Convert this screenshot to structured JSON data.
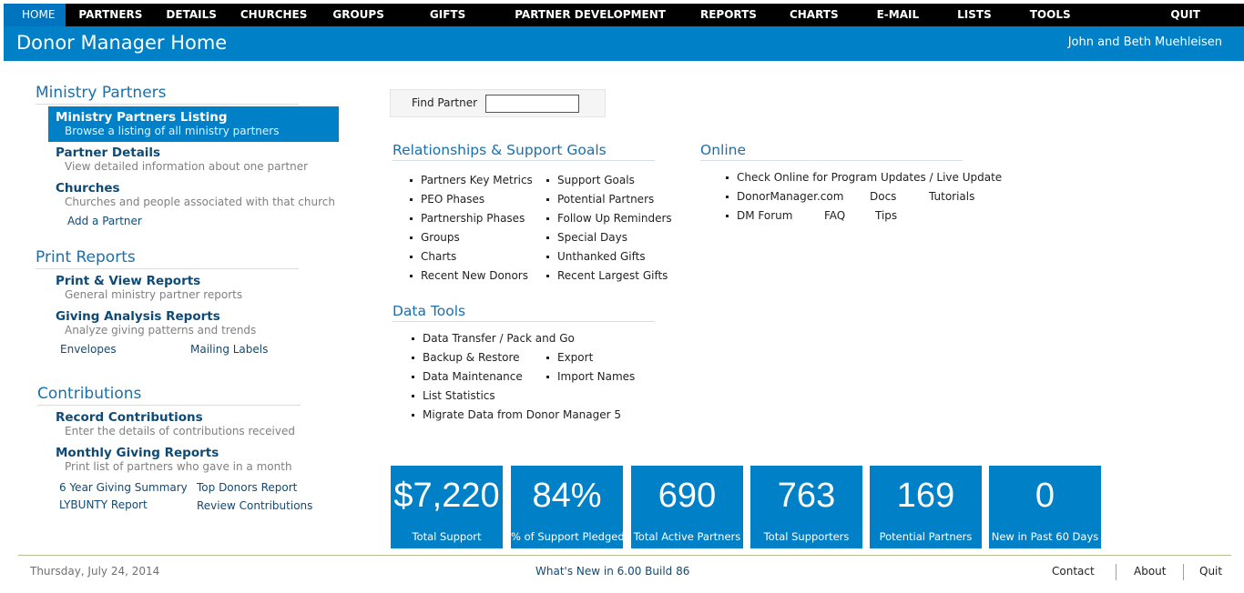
{
  "nav": {
    "items": [
      "HOME",
      "PARTNERS",
      "DETAILS",
      "CHURCHES",
      "GROUPS",
      "GIFTS",
      "PARTNER DEVELOPMENT",
      "REPORTS",
      "CHARTS",
      "E-MAIL",
      "LISTS",
      "TOOLS"
    ],
    "quit": "QUIT",
    "active": "HOME"
  },
  "header": {
    "title": "Donor Manager Home",
    "user": "John and Beth Muehleisen"
  },
  "left": {
    "ministry_partners": {
      "heading": "Ministry Partners",
      "items": [
        {
          "title": "Ministry Partners Listing",
          "desc": "Browse a listing of all ministry partners"
        },
        {
          "title": "Partner Details",
          "desc": "View detailed information about one partner"
        },
        {
          "title": "Churches",
          "desc": "Churches and people associated with that church"
        }
      ],
      "add_partner": "Add a Partner"
    },
    "print_reports": {
      "heading": "Print Reports",
      "items": [
        {
          "title": "Print & View Reports",
          "desc": "General ministry partner reports"
        },
        {
          "title": "Giving Analysis Reports",
          "desc": "Analyze giving patterns and trends"
        }
      ],
      "envelopes": "Envelopes",
      "mailing_labels": "Mailing Labels"
    },
    "contributions": {
      "heading": "Contributions",
      "items": [
        {
          "title": "Record Contributions",
          "desc": "Enter the details of contributions received"
        },
        {
          "title": "Monthly Giving Reports",
          "desc": "Print list of partners who gave in a month"
        }
      ],
      "six_year": "6 Year Giving Summary",
      "top_donors": "Top Donors Report",
      "lybunty": "LYBUNTY Report",
      "review": "Review Contributions"
    }
  },
  "find": {
    "label": "Find Partner",
    "value": ""
  },
  "relationships": {
    "heading": "Relationships & Support Goals",
    "col1": [
      "Partners Key Metrics",
      "PEO Phases",
      "Partnership Phases",
      "Groups",
      "Charts",
      "Recent New Donors"
    ],
    "col2": [
      "Support Goals",
      "Potential Partners",
      "Follow Up Reminders",
      "Special Days",
      "Unthanked Gifts",
      "Recent Largest Gifts"
    ]
  },
  "data_tools": {
    "heading": "Data Tools",
    "data_transfer": "Data Transfer / Pack and Go",
    "backup": "Backup & Restore",
    "export": "Export",
    "maintenance": "Data Maintenance",
    "import": "Import Names",
    "list_stats": "List Statistics",
    "migrate": "Migrate Data from Donor Manager 5"
  },
  "online": {
    "heading": "Online",
    "check": "Check Online for Program Updates / Live Update",
    "donormanager": "DonorManager.com",
    "docs": "Docs",
    "tutorials": "Tutorials",
    "forum": "DM Forum",
    "faq": "FAQ",
    "tips": "Tips"
  },
  "tiles": [
    {
      "value": "$7,220",
      "label": "Total Support"
    },
    {
      "value": "84%",
      "label": "% of Support Pledged"
    },
    {
      "value": "690",
      "label": "Total Active Partners"
    },
    {
      "value": "763",
      "label": "Total Supporters"
    },
    {
      "value": "169",
      "label": "Potential Partners"
    },
    {
      "value": "0",
      "label": "New in Past 60 Days"
    }
  ],
  "footer": {
    "date": "Thursday, July 24, 2014",
    "whats_new": "What's New in 6.00 Build 86",
    "contact": "Contact",
    "about": "About",
    "quit": "Quit"
  },
  "colors": {
    "accent": "#0080c6",
    "nav_bg": "#000000",
    "heading": "#1a6fad"
  }
}
